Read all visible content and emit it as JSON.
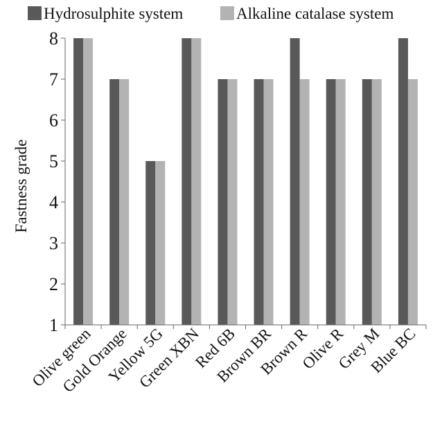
{
  "chart_data": {
    "type": "bar",
    "categories": [
      "Olive green",
      "Gold Orange",
      "Yellow 5G",
      "Green XBN",
      "Red 6B",
      "Brown BR",
      "Brown R",
      "Olive R",
      "Grey M",
      "Blue BC"
    ],
    "series": [
      {
        "name": "Hydrosulphite system",
        "values": [
          8,
          7,
          5,
          8,
          7,
          7,
          8,
          7,
          7,
          8
        ],
        "color": "#595959"
      },
      {
        "name": "Alkaline catalase system",
        "values": [
          8,
          7,
          5,
          8,
          7,
          7,
          7,
          7,
          7,
          7
        ],
        "color": "#b3b3b3"
      }
    ],
    "title": "",
    "xlabel": "",
    "ylabel": "Fastness grade",
    "ylim": [
      1,
      8
    ],
    "yticks": [
      1,
      2,
      3,
      4,
      5,
      6,
      7,
      8
    ],
    "grid": false,
    "legend_position": "top"
  }
}
